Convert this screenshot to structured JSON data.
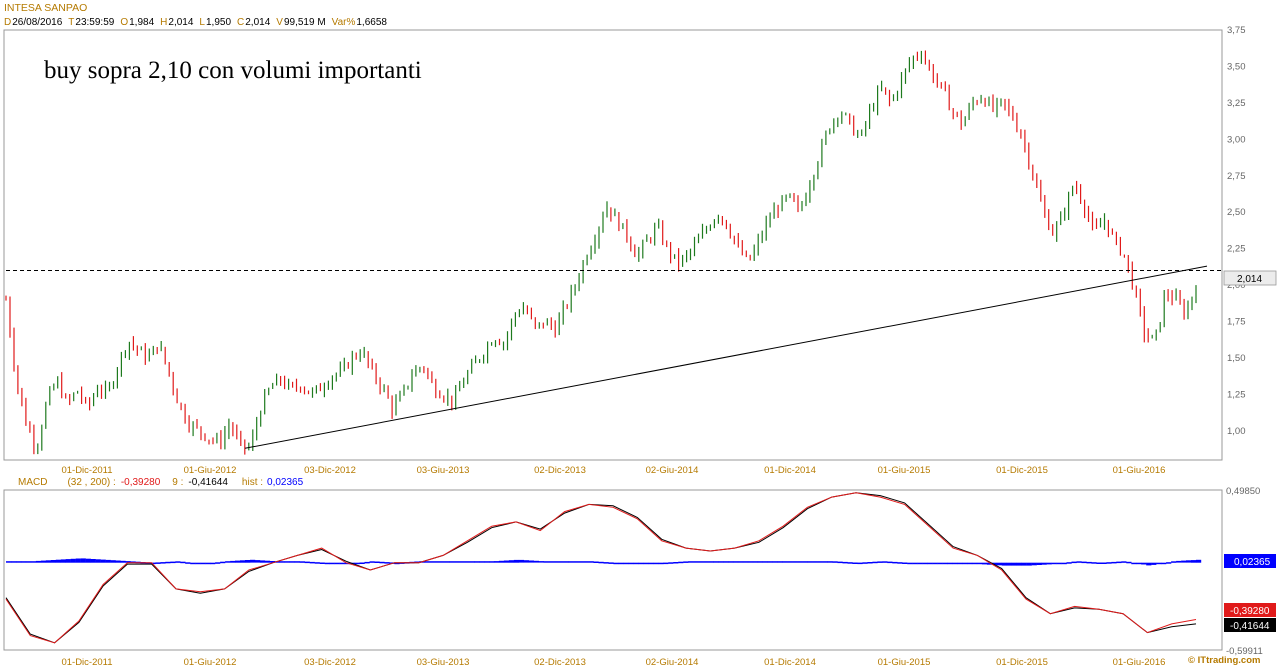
{
  "title": "INTESA SANPAO",
  "header": {
    "d_label": "D",
    "d_value": "26/08/2016",
    "t_label": "T",
    "t_value": "23:59:59",
    "o_label": "O",
    "o_value": "1,984",
    "h_label": "H",
    "h_value": "2,014",
    "l_label": "L",
    "l_value": "1,950",
    "c_label": "C",
    "c_value": "2,014",
    "v_label": "V",
    "v_value": "99,519 M",
    "var_label": "Var%",
    "var_value": "1,6658"
  },
  "annotation": "buy sopra 2,10 con volumi importanti",
  "last_price_label": "2,014",
  "macd": {
    "label": "MACD",
    "params": "(32 , 200) :",
    "macd_value": "-0,39280",
    "signal_label": "9 :",
    "signal_value": "-0,41644",
    "hist_label": "hist :",
    "hist_value": "0,02365",
    "badge_hist": "0,02365",
    "badge_macd": "-0,39280",
    "badge_signal": "-0,41644",
    "top_tick": "0,49850",
    "bottom_tick": "-0,59911"
  },
  "watermark": "© ITtrading.com",
  "colors": {
    "up": "#1e7a1e",
    "down": "#e01a1a",
    "macd": "#e01a1a",
    "signal": "#000000",
    "hist": "#0000ff",
    "accent": "#b57a00"
  },
  "chart_data": [
    {
      "type": "line",
      "title": "INTESA SANPAO",
      "x_tick_labels": [
        "01-Dic-2011",
        "01-Giu-2012",
        "03-Dic-2012",
        "03-Giu-2013",
        "02-Dic-2013",
        "02-Giu-2014",
        "01-Dic-2014",
        "01-Giu-2015",
        "01-Dic-2015",
        "01-Giu-2016"
      ],
      "y_tick_labels": [
        "1,00",
        "1,25",
        "1,50",
        "1,75",
        "2,00",
        "2,25",
        "2,50",
        "2,75",
        "3,00",
        "3,25",
        "3,50",
        "3,75"
      ],
      "ylim": [
        0.8,
        3.75
      ],
      "grid": false,
      "series": [
        {
          "values": [
            1.9,
            1.35,
            1.05,
            0.88,
            1.2,
            1.35,
            1.18,
            1.28,
            1.15,
            1.3,
            1.25,
            1.45,
            1.62,
            1.55,
            1.5,
            1.6,
            1.4,
            1.18,
            1.05,
            1.0,
            0.95,
            0.92,
            1.05,
            0.9,
            0.88,
            1.15,
            1.3,
            1.35,
            1.28,
            1.32,
            1.25,
            1.3,
            1.38,
            1.4,
            1.5,
            1.55,
            1.4,
            1.3,
            1.15,
            1.25,
            1.4,
            1.45,
            1.3,
            1.25,
            1.2,
            1.35,
            1.45,
            1.55,
            1.65,
            1.6,
            1.8,
            1.85,
            1.7,
            1.75,
            1.7,
            1.85,
            2.0,
            2.2,
            2.35,
            2.55,
            2.45,
            2.35,
            2.2,
            2.3,
            2.4,
            2.25,
            2.15,
            2.2,
            2.3,
            2.4,
            2.5,
            2.4,
            2.25,
            2.15,
            2.3,
            2.45,
            2.55,
            2.6,
            2.5,
            2.7,
            2.9,
            3.1,
            3.2,
            3.1,
            3.0,
            3.2,
            3.35,
            3.25,
            3.4,
            3.55,
            3.6,
            3.45,
            3.35,
            3.2,
            3.1,
            3.25,
            3.3,
            3.2,
            3.25,
            3.15,
            3.0,
            2.75,
            2.5,
            2.35,
            2.5,
            2.7,
            2.55,
            2.35,
            2.45,
            2.3,
            2.2,
            1.95,
            1.65,
            1.62,
            1.95,
            1.9,
            1.8,
            2.01
          ]
        },
        {
          "name": "",
          "values": [
            0.88,
            2.13
          ]
        },
        {
          "values": [
            2.1
          ]
        }
      ]
    },
    {
      "type": "line",
      "title": "MACD",
      "ylim": [
        -0.59911,
        0.4985
      ],
      "series": [
        {
          "values": [
            -0.25,
            -0.5,
            -0.55,
            -0.4,
            -0.15,
            0.0,
            0.0,
            -0.18,
            -0.2,
            -0.18,
            -0.05,
            0.0,
            0.05,
            0.1,
            0.0,
            -0.05,
            0.0,
            0.0,
            0.05,
            0.15,
            0.25,
            0.28,
            0.22,
            0.35,
            0.4,
            0.38,
            0.3,
            0.15,
            0.1,
            0.08,
            0.1,
            0.15,
            0.25,
            0.38,
            0.45,
            0.48,
            0.45,
            0.4,
            0.25,
            0.1,
            0.05,
            -0.05,
            -0.25,
            -0.35,
            -0.3,
            -0.32,
            -0.35,
            -0.48,
            -0.42,
            -0.39
          ]
        },
        {
          "values": [
            -0.24,
            -0.49,
            -0.55,
            -0.41,
            -0.16,
            -0.01,
            -0.01,
            -0.18,
            -0.21,
            -0.18,
            -0.06,
            0.0,
            0.05,
            0.09,
            0.01,
            -0.05,
            0.0,
            0.0,
            0.05,
            0.14,
            0.24,
            0.28,
            0.23,
            0.34,
            0.4,
            0.39,
            0.31,
            0.16,
            0.1,
            0.08,
            0.1,
            0.14,
            0.24,
            0.37,
            0.45,
            0.48,
            0.46,
            0.41,
            0.26,
            0.11,
            0.05,
            -0.04,
            -0.24,
            -0.35,
            -0.31,
            -0.32,
            -0.35,
            -0.48,
            -0.44,
            -0.42
          ]
        },
        {
          "values": [
            0.01,
            0.01,
            0.02,
            0.03,
            0.02,
            0.01,
            0.0,
            0.01,
            -0.01,
            0.01,
            0.02,
            0.01,
            0.01,
            0.0,
            -0.01,
            0.01,
            0.0,
            0.01,
            0.01,
            0.01,
            0.01,
            0.02,
            0.01,
            0.01,
            0.01,
            0.0,
            -0.01,
            0.0,
            0.01,
            0.01,
            0.01,
            0.01,
            0.01,
            0.01,
            0.01,
            0.0,
            0.01,
            0.0,
            -0.01,
            0.0,
            -0.01,
            -0.02,
            -0.02,
            -0.01,
            0.01,
            0.0,
            0.01,
            -0.02,
            0.01,
            0.02
          ]
        }
      ]
    }
  ]
}
